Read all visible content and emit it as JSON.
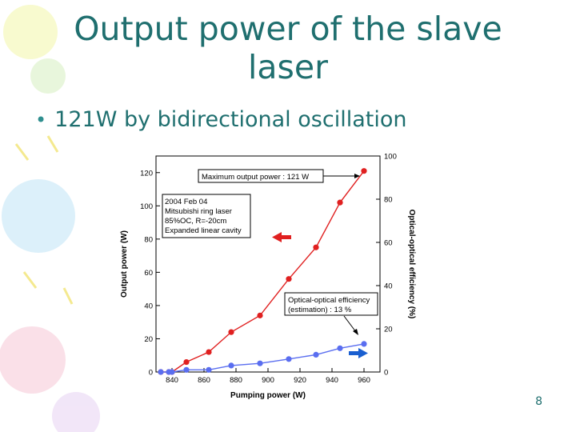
{
  "slide": {
    "title_line1": "Output power of the slave",
    "title_line2": "laser",
    "bullet": "121W by bidirectional oscillation",
    "page_number": "8"
  },
  "colors": {
    "title": "#1f6f6f",
    "output_series": "#e02020",
    "efficiency_series": "#5a6ef0",
    "arrow_left": "#e02020",
    "arrow_right": "#1a5fd0"
  },
  "chart_data": {
    "type": "line",
    "xlabel": "Pumping power (W)",
    "ylabel_left": "Output power (W)",
    "ylabel_right": "Optical-optical efficiency (%)",
    "xlim": [
      830,
      970
    ],
    "ylim_left": [
      0,
      130
    ],
    "ylim_right": [
      0,
      100
    ],
    "x_ticks": [
      840,
      860,
      880,
      900,
      920,
      940,
      960
    ],
    "y_ticks_left": [
      0,
      20,
      40,
      60,
      80,
      100,
      120
    ],
    "y_ticks_right": [
      0,
      20,
      40,
      60,
      80,
      100
    ],
    "grid": false,
    "series": [
      {
        "axis": "left",
        "x": [
          833,
          838,
          840,
          849,
          863,
          877,
          895,
          913,
          930,
          945,
          960
        ],
        "y": [
          0,
          0,
          0,
          6,
          12,
          24,
          34,
          56,
          75,
          102,
          121
        ]
      },
      {
        "axis": "right",
        "x": [
          833,
          838,
          840,
          849,
          863,
          877,
          895,
          913,
          930,
          945,
          960
        ],
        "y": [
          0,
          0,
          0,
          1,
          1,
          3,
          4,
          6,
          8,
          11,
          13
        ]
      }
    ],
    "annotations": {
      "max_output": "Maximum output power : 121 W",
      "info": [
        "2004 Feb 04",
        "Mitsubishi ring laser",
        "85%OC, R=-20cm",
        "Expanded linear cavity"
      ],
      "efficiency": [
        "Optical-optical efficiency",
        "(estimation) : 13 %"
      ]
    }
  }
}
